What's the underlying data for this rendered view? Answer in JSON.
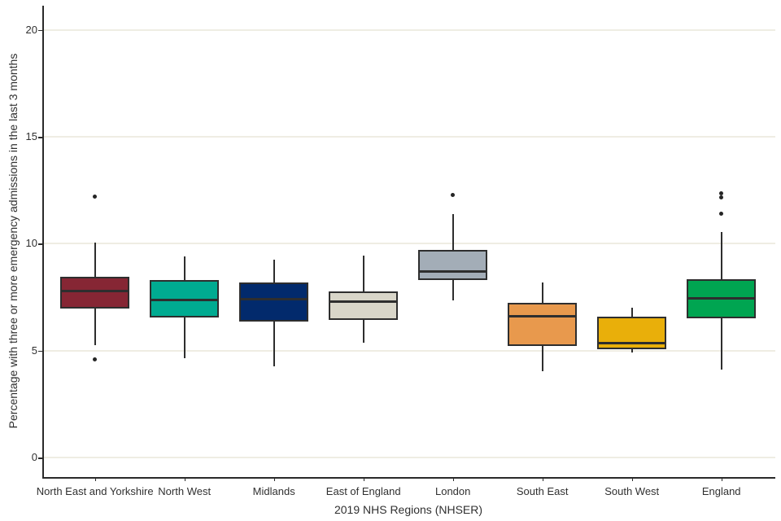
{
  "chart_data": {
    "type": "boxplot",
    "title": "",
    "xlabel": "2019 NHS Regions (NHSER)",
    "ylabel": "Percentage with three or more emergency admissions in the last 3 months",
    "ylim": [
      -1,
      21
    ],
    "yticks": [
      0,
      5,
      10,
      15,
      20
    ],
    "grid": "horizontal gridlines at y ticks, light beige, no legend",
    "categories": [
      "North East and Yorkshire",
      "North West",
      "Midlands",
      "East of England",
      "London",
      "South East",
      "South West",
      "England"
    ],
    "series": [
      {
        "region": "North East and Yorkshire",
        "color": "#862634",
        "whisker_low": 5.25,
        "q1": 6.95,
        "median": 7.8,
        "q3": 8.45,
        "whisker_high": 10.05,
        "outliers": [
          12.2,
          4.6
        ]
      },
      {
        "region": "North West",
        "color": "#00ab91",
        "whisker_low": 4.65,
        "q1": 6.55,
        "median": 7.35,
        "q3": 8.3,
        "whisker_high": 9.4,
        "outliers": []
      },
      {
        "region": "Midlands",
        "color": "#022a6c",
        "whisker_low": 4.25,
        "q1": 6.35,
        "median": 7.4,
        "q3": 8.2,
        "whisker_high": 9.25,
        "outliers": []
      },
      {
        "region": "East of England",
        "color": "#d9d6c9",
        "whisker_low": 5.35,
        "q1": 6.45,
        "median": 7.3,
        "q3": 7.75,
        "whisker_high": 9.45,
        "outliers": []
      },
      {
        "region": "London",
        "color": "#a3adb7",
        "whisker_low": 7.35,
        "q1": 8.3,
        "median": 8.7,
        "q3": 9.7,
        "whisker_high": 11.4,
        "outliers": [
          12.3
        ]
      },
      {
        "region": "South East",
        "color": "#e8994d",
        "whisker_low": 4.05,
        "q1": 5.2,
        "median": 6.6,
        "q3": 7.25,
        "whisker_high": 8.2,
        "outliers": []
      },
      {
        "region": "South West",
        "color": "#e9af0a",
        "whisker_low": 4.9,
        "q1": 5.05,
        "median": 5.35,
        "q3": 6.6,
        "whisker_high": 7.0,
        "outliers": []
      },
      {
        "region": "England",
        "color": "#00a551",
        "whisker_low": 4.1,
        "q1": 6.5,
        "median": 7.45,
        "q3": 8.35,
        "whisker_high": 10.55,
        "outliers": [
          12.35,
          12.15,
          11.4
        ]
      }
    ],
    "style_colors": {
      "axis": "#2a2a2a",
      "box_border": "#2e2e2e",
      "gridline": "#efede3",
      "text": "#303030",
      "background": "#ffffff"
    }
  }
}
